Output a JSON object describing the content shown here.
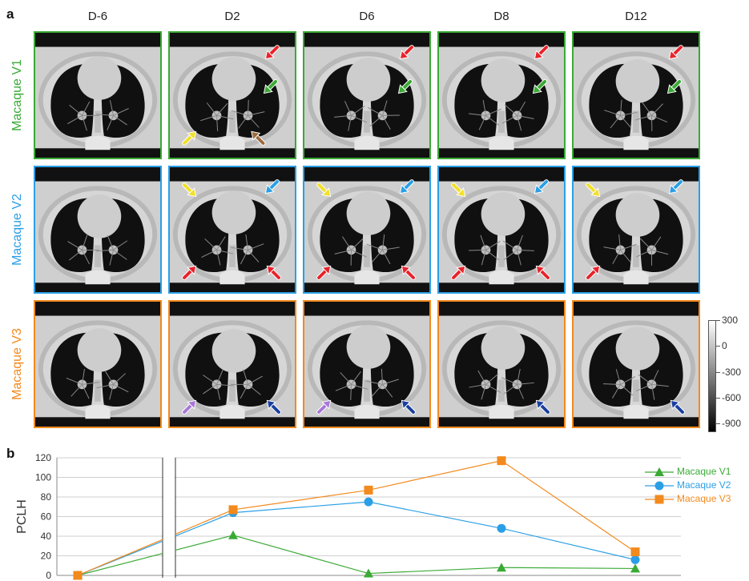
{
  "panel_a": {
    "label": "a",
    "columns": [
      "D-6",
      "D2",
      "D6",
      "D8",
      "D12"
    ],
    "rows": [
      {
        "name": "Macaque V1",
        "color": "#3aaa35"
      },
      {
        "name": "Macaque V2",
        "color": "#2b9fe6"
      },
      {
        "name": "Macaque V3",
        "color": "#f28a1e"
      }
    ],
    "arrows": [
      [
        [],
        [
          {
            "c": "#e8232b",
            "p": "ur"
          },
          {
            "c": "#3aaa35",
            "p": "mr"
          },
          {
            "c": "#f2e02a",
            "p": "ll"
          },
          {
            "c": "#9c6b3c",
            "p": "lc"
          }
        ],
        [
          {
            "c": "#e8232b",
            "p": "ur"
          },
          {
            "c": "#3aaa35",
            "p": "mr"
          }
        ],
        [
          {
            "c": "#e8232b",
            "p": "ur"
          },
          {
            "c": "#3aaa35",
            "p": "mr"
          }
        ],
        [
          {
            "c": "#e8232b",
            "p": "ur"
          },
          {
            "c": "#3aaa35",
            "p": "mr"
          }
        ]
      ],
      [
        [],
        [
          {
            "c": "#f2e02a",
            "p": "ul"
          },
          {
            "c": "#2b9fe6",
            "p": "ur"
          },
          {
            "c": "#e8232b",
            "p": "ll"
          },
          {
            "c": "#e8232b",
            "p": "lr"
          }
        ],
        [
          {
            "c": "#f2e02a",
            "p": "ul"
          },
          {
            "c": "#2b9fe6",
            "p": "ur"
          },
          {
            "c": "#e8232b",
            "p": "ll"
          },
          {
            "c": "#e8232b",
            "p": "lr"
          }
        ],
        [
          {
            "c": "#f2e02a",
            "p": "ul"
          },
          {
            "c": "#2b9fe6",
            "p": "ur"
          },
          {
            "c": "#e8232b",
            "p": "ll"
          },
          {
            "c": "#e8232b",
            "p": "lr"
          }
        ],
        [
          {
            "c": "#f2e02a",
            "p": "ul"
          },
          {
            "c": "#2b9fe6",
            "p": "ur"
          },
          {
            "c": "#e8232b",
            "p": "ll"
          }
        ]
      ],
      [
        [],
        [
          {
            "c": "#a877d6",
            "p": "ll"
          },
          {
            "c": "#1a3fa0",
            "p": "lr"
          }
        ],
        [
          {
            "c": "#a877d6",
            "p": "ll"
          },
          {
            "c": "#1a3fa0",
            "p": "lr"
          }
        ],
        [
          {
            "c": "#1a3fa0",
            "p": "lr"
          }
        ],
        [
          {
            "c": "#1a3fa0",
            "p": "lr"
          }
        ]
      ]
    ],
    "colorbar": {
      "ticks": [
        "300",
        "0",
        "-300",
        "-600",
        "-900"
      ],
      "range": [
        -1000,
        300
      ]
    }
  },
  "panel_b": {
    "label": "b"
  },
  "chart_data": {
    "type": "line",
    "ylabel": "PCLH",
    "xlabel": "",
    "ylim": [
      0,
      120
    ],
    "yticks": [
      0,
      20,
      40,
      60,
      80,
      100,
      120
    ],
    "grid": true,
    "axis_break": true,
    "legend_position": "top-right",
    "categories": [
      "D-6",
      "D2",
      "D6",
      "D8",
      "D12"
    ],
    "series": [
      {
        "name": "Macaque V1",
        "color": "#3aaa35",
        "marker": "triangle",
        "values": [
          0,
          41,
          2,
          8,
          7
        ]
      },
      {
        "name": "Macaque V2",
        "color": "#2b9fe6",
        "marker": "circle",
        "values": [
          0,
          64,
          75,
          48,
          16
        ]
      },
      {
        "name": "Macaque V3",
        "color": "#f28a1e",
        "marker": "square",
        "values": [
          0,
          67,
          87,
          117,
          24
        ]
      }
    ]
  }
}
